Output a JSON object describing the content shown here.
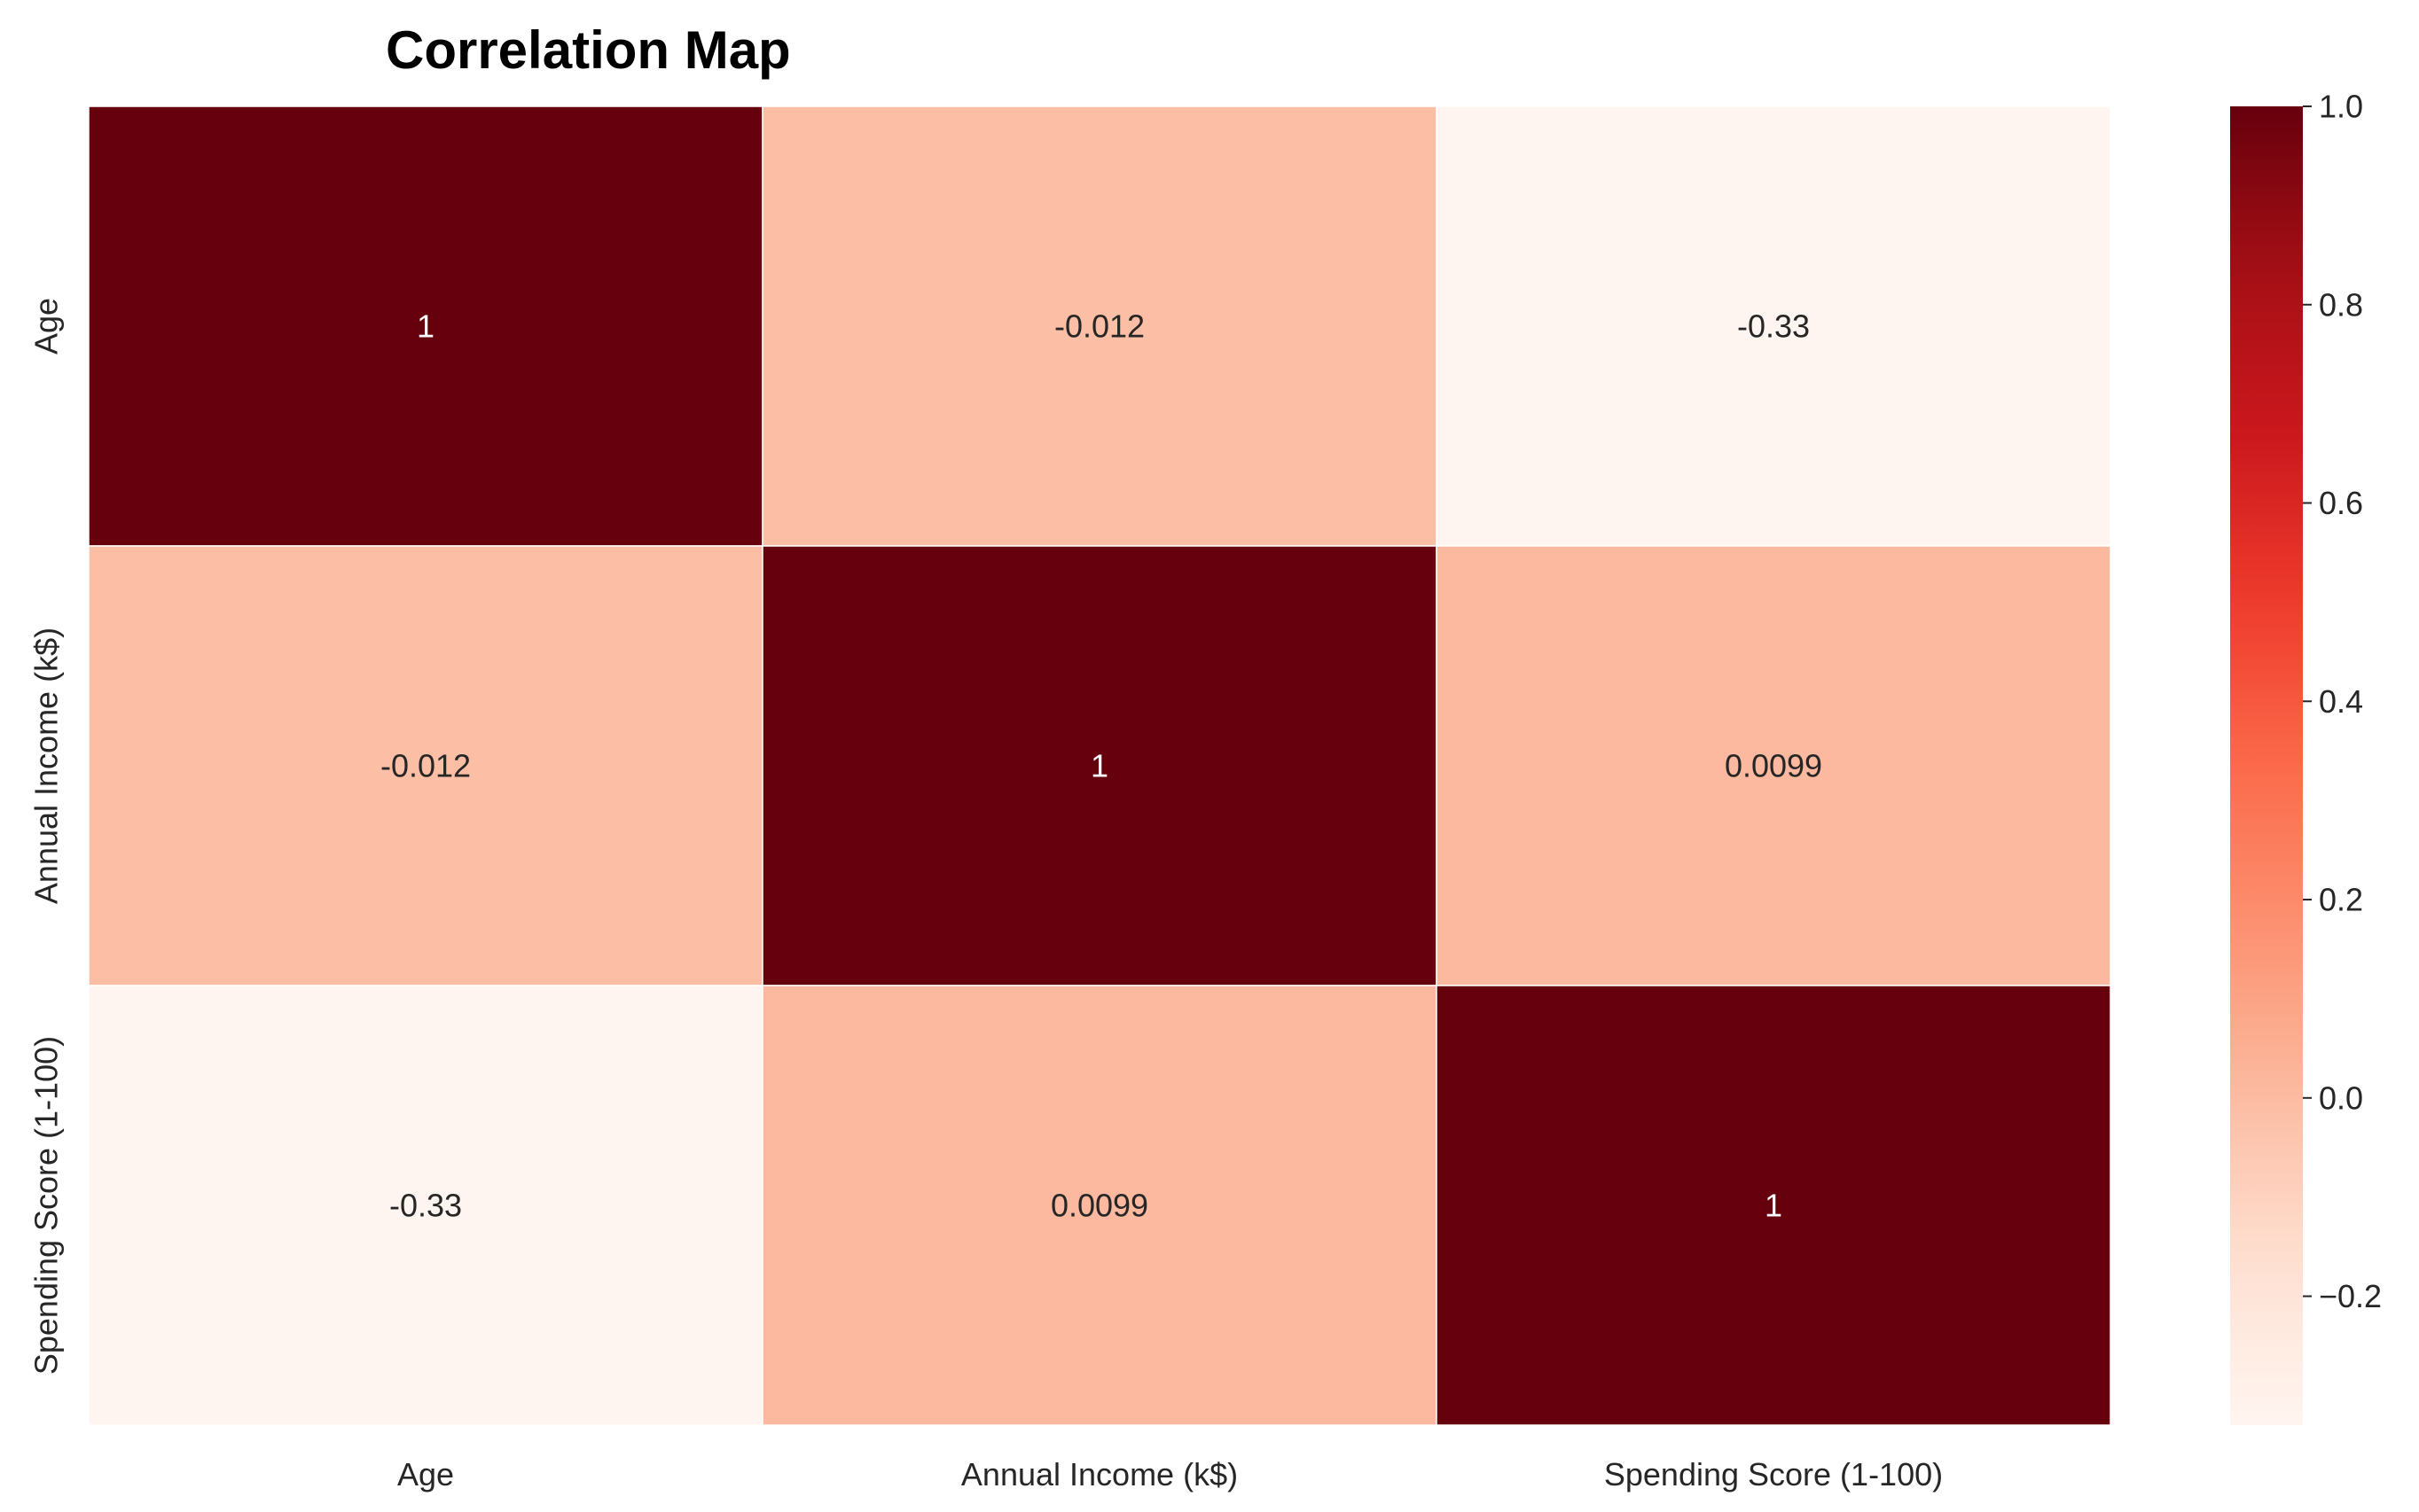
{
  "chart_data": {
    "type": "heatmap",
    "title": "Correlation Map",
    "xlabel": "",
    "ylabel": "",
    "x_categories": [
      "Age",
      "Annual Income (k$)",
      "Spending Score (1-100)"
    ],
    "y_categories": [
      "Age",
      "Annual Income (k$)",
      "Spending Score (1-100)"
    ],
    "values": [
      [
        1,
        -0.012,
        -0.33
      ],
      [
        -0.012,
        1,
        0.0099
      ],
      [
        -0.33,
        0.0099,
        1
      ]
    ],
    "annotations": [
      [
        "1",
        "-0.012",
        "-0.33"
      ],
      [
        "-0.012",
        "1",
        "0.0099"
      ],
      [
        "-0.33",
        "0.0099",
        "1"
      ]
    ],
    "colormap": "Reds",
    "vmin": -0.33,
    "vmax": 1.0,
    "colorbar_ticks": [
      -0.2,
      0.0,
      0.2,
      0.4,
      0.6,
      0.8,
      1.0
    ],
    "colorbar_tick_labels": [
      "−0.2",
      "0.0",
      "0.2",
      "0.4",
      "0.6",
      "0.8",
      "1.0"
    ],
    "cell_border_color": "#ffffff",
    "annotation_color_dark_bg": "#ffffff",
    "annotation_color_light_bg": "#262626",
    "grid": false,
    "legend": "colorbar-right"
  }
}
